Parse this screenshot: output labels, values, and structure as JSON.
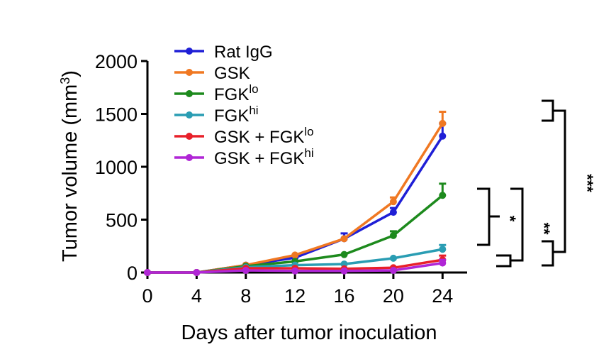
{
  "chart_data": {
    "type": "line",
    "x": [
      0,
      4,
      8,
      12,
      16,
      20,
      24
    ],
    "xlabel": "Days after tumor inoculation",
    "ylabel_prefix": "Tumor volume (mm",
    "ylabel_sup": "3",
    "ylabel_suffix": ")",
    "xlim": [
      0,
      26
    ],
    "ylim": [
      0,
      2000
    ],
    "xticks": [
      "0",
      "4",
      "8",
      "12",
      "16",
      "20",
      "24"
    ],
    "yticks": [
      "0",
      "500",
      "1000",
      "1500",
      "2000"
    ],
    "grid": false,
    "legend_position": "top-left",
    "series": [
      {
        "name": "Rat IgG",
        "sup": "",
        "color": "#1f1fd6",
        "values": [
          0,
          0,
          70,
          140,
          320,
          570,
          1290
        ],
        "errors": [
          0,
          0,
          0,
          0,
          50,
          40,
          120
        ]
      },
      {
        "name": "GSK",
        "sup": "",
        "color": "#f07822",
        "values": [
          0,
          0,
          70,
          165,
          320,
          670,
          1410
        ],
        "errors": [
          0,
          0,
          0,
          0,
          0,
          40,
          110
        ]
      },
      {
        "name": "FGK",
        "sup": "lo",
        "color": "#1d8a1d",
        "values": [
          0,
          0,
          60,
          105,
          170,
          350,
          730
        ],
        "errors": [
          0,
          0,
          0,
          0,
          0,
          40,
          110
        ]
      },
      {
        "name": "FGK",
        "sup": "hi",
        "color": "#2a9db3",
        "values": [
          0,
          0,
          50,
          70,
          80,
          135,
          220
        ],
        "errors": [
          0,
          0,
          0,
          0,
          0,
          0,
          40
        ]
      },
      {
        "name": "GSK + FGK",
        "sup": "lo",
        "color": "#e8202a",
        "values": [
          0,
          0,
          40,
          40,
          35,
          45,
          120
        ],
        "errors": [
          0,
          0,
          0,
          0,
          0,
          0,
          40
        ]
      },
      {
        "name": "GSK + FGK",
        "sup": "hi",
        "color": "#b026d6",
        "values": [
          0,
          0,
          20,
          15,
          15,
          20,
          90
        ],
        "errors": [
          0,
          0,
          0,
          0,
          0,
          0,
          30
        ]
      }
    ],
    "significance": [
      {
        "label": "*"
      },
      {
        "label": "**"
      },
      {
        "label": "***"
      }
    ]
  }
}
